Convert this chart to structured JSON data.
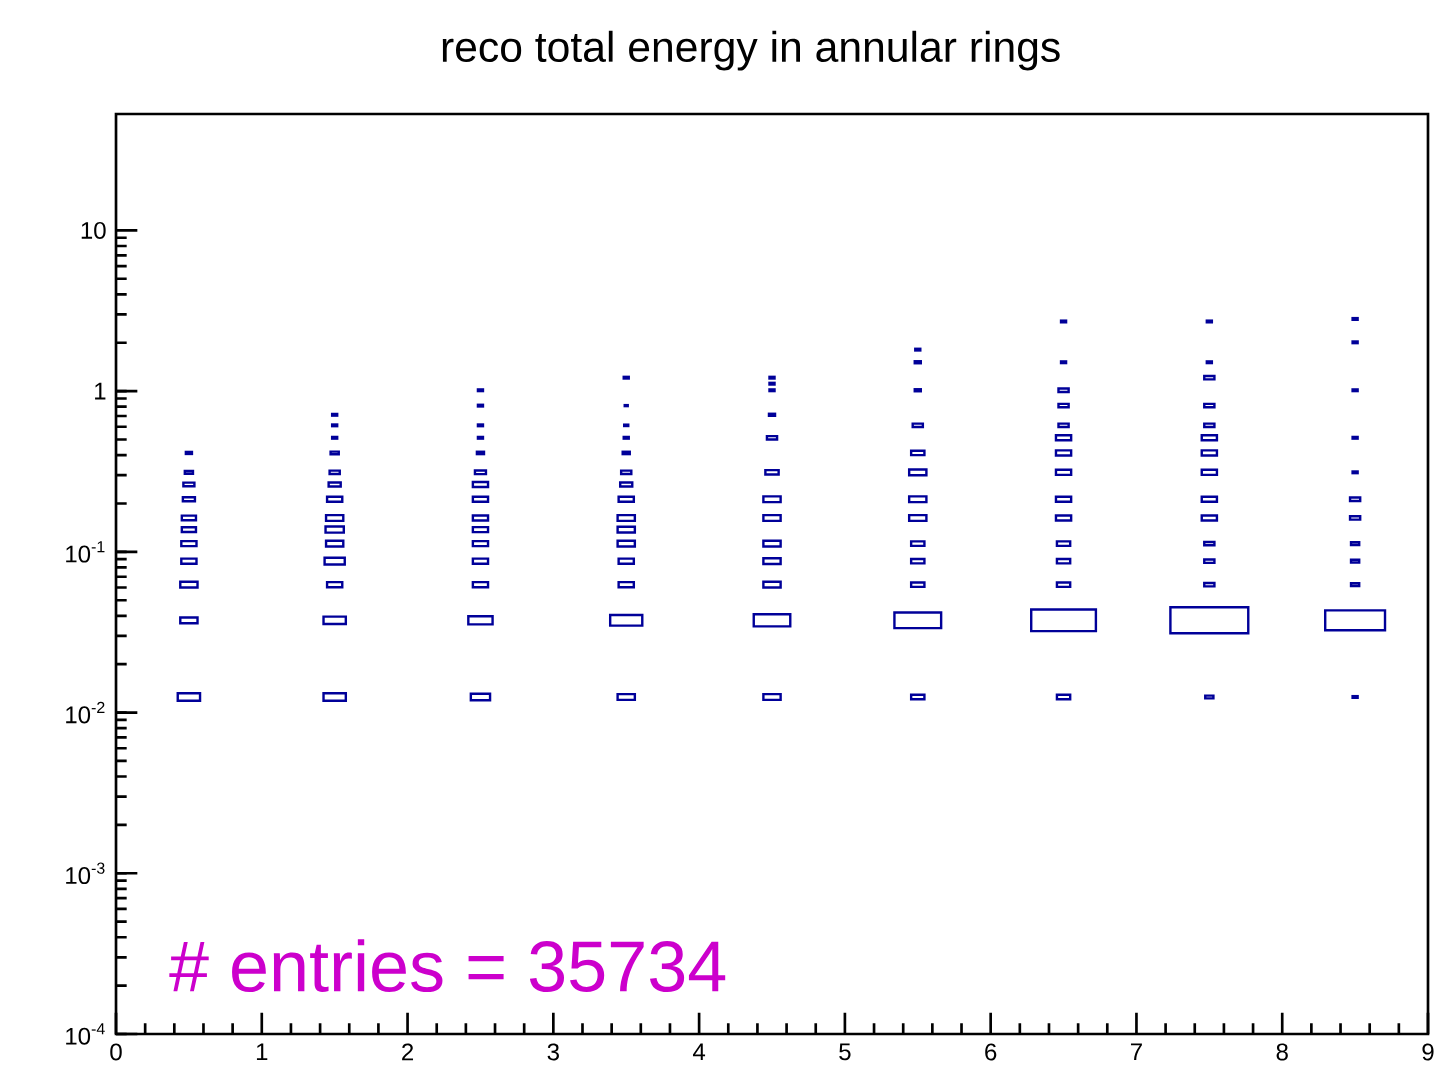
{
  "chart_data": {
    "type": "bubble",
    "title": "reco total energy in annular rings",
    "annotations": [
      "# entries = 35734"
    ],
    "xlim": [
      0,
      9
    ],
    "xticks": [
      0,
      1,
      2,
      3,
      4,
      5,
      6,
      7,
      8,
      9
    ],
    "ylim": [
      0.0001,
      53
    ],
    "log": "y",
    "yticks": [
      {
        "value": 0.0001,
        "label": "10$^{-4}$"
      },
      {
        "value": 0.001,
        "label": "10$^{-3}$"
      },
      {
        "value": 0.01,
        "label": "10$^{-2}$"
      },
      {
        "value": 0.1,
        "label": "10$^{-1}$"
      },
      1,
      10
    ],
    "marker": "square",
    "series": [
      {
        "color": "#000099",
        "x": [
          0.5,
          0.5,
          0.5,
          0.5,
          0.5,
          0.5,
          0.5,
          0.5,
          0.5,
          0.5,
          0.5
        ],
        "values": [
          0.0125,
          0.0375,
          0.0625,
          0.0875,
          0.1125,
          0.1375,
          0.1625,
          0.2125,
          0.2625,
          0.3125,
          0.4125
        ],
        "sizes": [
          0.082,
          0.049,
          0.049,
          0.038,
          0.038,
          0.033,
          0.033,
          0.024,
          0.02,
          0.011,
          0.0061
        ]
      },
      {
        "color": "#000099",
        "x": [
          1.5,
          1.5,
          1.5,
          1.5,
          1.5,
          1.5,
          1.5,
          1.5,
          1.5,
          1.5,
          1.5,
          1.5,
          1.5,
          1.5
        ],
        "values": [
          0.0125,
          0.0375,
          0.0625,
          0.0875,
          0.1125,
          0.1375,
          0.1625,
          0.2125,
          0.2625,
          0.3125,
          0.4125,
          0.5125,
          0.6125,
          0.7125
        ],
        "sizes": [
          0.082,
          0.082,
          0.038,
          0.067,
          0.049,
          0.055,
          0.049,
          0.038,
          0.024,
          0.017,
          0.011,
          0.0042,
          0.0042,
          0.0042
        ]
      },
      {
        "color": "#000099",
        "x": [
          2.5,
          2.5,
          2.5,
          2.5,
          2.5,
          2.5,
          2.5,
          2.5,
          2.5,
          2.5,
          2.5,
          2.5,
          2.5,
          2.5,
          2.5
        ],
        "values": [
          0.0125,
          0.0375,
          0.0625,
          0.0875,
          0.1125,
          0.1375,
          0.1625,
          0.2125,
          0.2625,
          0.3125,
          0.4125,
          0.5125,
          0.6125,
          0.8125,
          1.0125
        ],
        "sizes": [
          0.061,
          0.097,
          0.038,
          0.038,
          0.038,
          0.038,
          0.038,
          0.038,
          0.038,
          0.02,
          0.0083,
          0.0042,
          0.0042,
          0.0042,
          0.0042
        ]
      },
      {
        "color": "#000099",
        "x": [
          3.5,
          3.5,
          3.5,
          3.5,
          3.5,
          3.5,
          3.5,
          3.5,
          3.5,
          3.5,
          3.5,
          3.5,
          3.5,
          3.5,
          3.5
        ],
        "values": [
          0.0125,
          0.0375,
          0.0625,
          0.0875,
          0.1125,
          0.1375,
          0.1625,
          0.2125,
          0.2625,
          0.3125,
          0.4125,
          0.5125,
          0.6125,
          0.8125,
          1.2125
        ],
        "sizes": [
          0.049,
          0.17,
          0.038,
          0.038,
          0.049,
          0.049,
          0.049,
          0.038,
          0.024,
          0.017,
          0.0083,
          0.0042,
          0.0027,
          0.0015,
          0.0042
        ]
      },
      {
        "color": "#000099",
        "x": [
          4.5,
          4.5,
          4.5,
          4.5,
          4.5,
          4.5,
          4.5,
          4.5,
          4.5,
          4.5,
          4.5,
          4.5,
          4.5
        ],
        "values": [
          0.0125,
          0.0375,
          0.0625,
          0.0875,
          0.1125,
          0.1625,
          0.2125,
          0.3125,
          0.5125,
          0.7125,
          1.0125,
          1.1125,
          1.2125
        ],
        "sizes": [
          0.049,
          0.22,
          0.049,
          0.049,
          0.049,
          0.049,
          0.049,
          0.029,
          0.017,
          0.0061,
          0.0042,
          0.0042,
          0.0042
        ]
      },
      {
        "color": "#000099",
        "x": [
          5.5,
          5.5,
          5.5,
          5.5,
          5.5,
          5.5,
          5.5,
          5.5,
          5.5,
          5.5,
          5.5,
          5.5,
          5.5
        ],
        "values": [
          0.0125,
          0.0375,
          0.0625,
          0.0875,
          0.1125,
          0.1625,
          0.2125,
          0.3125,
          0.4125,
          0.6125,
          1.0125,
          1.5125,
          1.8125
        ],
        "sizes": [
          0.029,
          0.36,
          0.029,
          0.029,
          0.029,
          0.049,
          0.049,
          0.049,
          0.029,
          0.017,
          0.0061,
          0.0061,
          0.0042
        ]
      },
      {
        "color": "#000099",
        "x": [
          6.5,
          6.5,
          6.5,
          6.5,
          6.5,
          6.5,
          6.5,
          6.5,
          6.5,
          6.5,
          6.5,
          6.5,
          6.5,
          6.5,
          6.5
        ],
        "values": [
          0.0125,
          0.0375,
          0.0625,
          0.0875,
          0.1125,
          0.1625,
          0.2125,
          0.3125,
          0.4125,
          0.5125,
          0.6125,
          0.8125,
          1.0125,
          1.5125,
          2.7125
        ],
        "sizes": [
          0.029,
          0.69,
          0.029,
          0.029,
          0.029,
          0.038,
          0.038,
          0.038,
          0.038,
          0.038,
          0.017,
          0.017,
          0.017,
          0.0042,
          0.0042
        ]
      },
      {
        "color": "#000099",
        "x": [
          7.5,
          7.5,
          7.5,
          7.5,
          7.5,
          7.5,
          7.5,
          7.5,
          7.5,
          7.5,
          7.5,
          7.5,
          7.5,
          7.5,
          7.5
        ],
        "values": [
          0.0125,
          0.0375,
          0.0625,
          0.0875,
          0.1125,
          0.1625,
          0.2125,
          0.3125,
          0.4125,
          0.5125,
          0.6125,
          0.8125,
          1.2125,
          1.5125,
          2.7125
        ],
        "sizes": [
          0.011,
          1,
          0.017,
          0.017,
          0.017,
          0.038,
          0.038,
          0.038,
          0.038,
          0.038,
          0.017,
          0.017,
          0.017,
          0.0042,
          0.0042
        ]
      },
      {
        "color": "#000099",
        "x": [
          8.5,
          8.5,
          8.5,
          8.5,
          8.5,
          8.5,
          8.5,
          8.5,
          8.5,
          8.5,
          8.5,
          8.5
        ],
        "values": [
          0.0125,
          0.0375,
          0.0625,
          0.0875,
          0.1125,
          0.1625,
          0.2125,
          0.3125,
          0.5125,
          1.0125,
          2.0125,
          2.8125
        ],
        "sizes": [
          0.0042,
          0.59,
          0.011,
          0.011,
          0.011,
          0.017,
          0.017,
          0.0042,
          0.0042,
          0.0042,
          0.0042,
          0.0042
        ]
      }
    ]
  }
}
